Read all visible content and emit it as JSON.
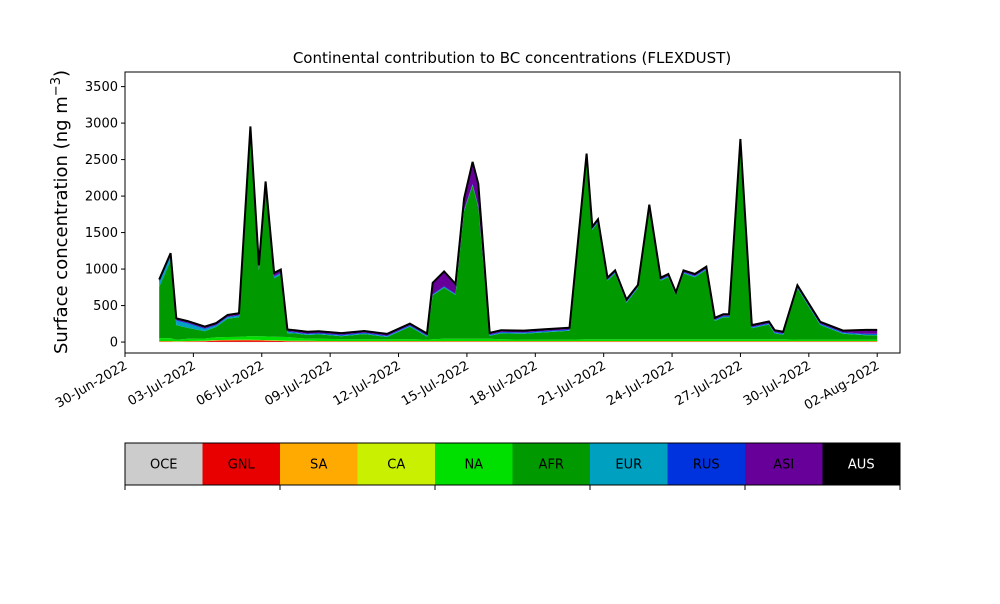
{
  "chart_data": {
    "type": "area",
    "stacked": true,
    "title": "Continental contribution to BC concentrations (FLEXDUST)",
    "ylabel": "Surface concentration (ng m",
    "ylabel_superscript": "−3",
    "ylabel_close": ")",
    "xlabel": "",
    "ylim": [
      -150,
      3700
    ],
    "yticks": [
      0,
      500,
      1000,
      1500,
      2000,
      2500,
      3000,
      3500
    ],
    "xlim": [
      "2022-06-30",
      "2022-08-03"
    ],
    "xticks": [
      "2022-06-30",
      "2022-07-03",
      "2022-07-06",
      "2022-07-09",
      "2022-07-12",
      "2022-07-15",
      "2022-07-18",
      "2022-07-21",
      "2022-07-24",
      "2022-07-27",
      "2022-07-30",
      "2022-08-02"
    ],
    "xticklabels": [
      "30-Jun-2022",
      "03-Jul-2022",
      "06-Jul-2022",
      "09-Jul-2022",
      "12-Jul-2022",
      "15-Jul-2022",
      "18-Jul-2022",
      "21-Jul-2022",
      "24-Jul-2022",
      "27-Jul-2022",
      "30-Jul-2022",
      "02-Aug-2022"
    ],
    "grid": false,
    "x": [
      "2022-07-01T12",
      "2022-07-02T00",
      "2022-07-02T06",
      "2022-07-02T18",
      "2022-07-03T12",
      "2022-07-04T00",
      "2022-07-04T12",
      "2022-07-05T00",
      "2022-07-05T12",
      "2022-07-05T21",
      "2022-07-06T04",
      "2022-07-06T13",
      "2022-07-06T20",
      "2022-07-07T03",
      "2022-07-07T12",
      "2022-07-08T00",
      "2022-07-08T12",
      "2022-07-09T12",
      "2022-07-10T12",
      "2022-07-11T12",
      "2022-07-12T12",
      "2022-07-13T06",
      "2022-07-13T12",
      "2022-07-14T00",
      "2022-07-14T12",
      "2022-07-14T21",
      "2022-07-15T06",
      "2022-07-15T12",
      "2022-07-16T00",
      "2022-07-16T12",
      "2022-07-17T12",
      "2022-07-18T12",
      "2022-07-19T12",
      "2022-07-20T06",
      "2022-07-20T12",
      "2022-07-20T18",
      "2022-07-21T04",
      "2022-07-21T12",
      "2022-07-22T00",
      "2022-07-22T12",
      "2022-07-23T00",
      "2022-07-23T12",
      "2022-07-23T20",
      "2022-07-24T04",
      "2022-07-24T12",
      "2022-07-25T00",
      "2022-07-25T12",
      "2022-07-25T21",
      "2022-07-26T06",
      "2022-07-26T12",
      "2022-07-27T00",
      "2022-07-27T12",
      "2022-07-28T06",
      "2022-07-28T12",
      "2022-07-28T21",
      "2022-07-29T12",
      "2022-07-30T12",
      "2022-07-31T12",
      "2022-08-01T12",
      "2022-08-02T00"
    ],
    "series": [
      {
        "name": "OCE",
        "color": "#cccccc",
        "values": [
          2,
          2,
          2,
          2,
          2,
          2,
          2,
          2,
          2,
          2,
          2,
          2,
          2,
          2,
          2,
          2,
          2,
          2,
          2,
          2,
          2,
          2,
          2,
          2,
          2,
          2,
          2,
          2,
          2,
          2,
          2,
          2,
          2,
          2,
          2,
          2,
          2,
          2,
          2,
          2,
          2,
          2,
          2,
          2,
          2,
          2,
          2,
          2,
          2,
          2,
          2,
          2,
          2,
          2,
          2,
          2,
          2,
          2,
          2,
          2
        ]
      },
      {
        "name": "GNL",
        "color": "#e80000",
        "values": [
          5,
          5,
          3,
          5,
          10,
          18,
          20,
          22,
          22,
          20,
          18,
          15,
          12,
          10,
          8,
          8,
          6,
          6,
          5,
          5,
          6,
          5,
          5,
          5,
          5,
          6,
          6,
          6,
          5,
          5,
          5,
          5,
          5,
          5,
          5,
          5,
          5,
          5,
          5,
          5,
          5,
          5,
          5,
          5,
          5,
          5,
          5,
          5,
          5,
          5,
          5,
          5,
          5,
          5,
          5,
          5,
          5,
          5,
          5,
          5
        ]
      },
      {
        "name": "SA",
        "color": "#ffaa00",
        "values": [
          2,
          2,
          2,
          2,
          2,
          2,
          2,
          2,
          2,
          2,
          2,
          2,
          2,
          2,
          2,
          2,
          2,
          2,
          2,
          2,
          2,
          2,
          2,
          2,
          2,
          2,
          2,
          2,
          2,
          2,
          2,
          2,
          2,
          2,
          2,
          2,
          2,
          2,
          2,
          2,
          2,
          2,
          2,
          2,
          2,
          2,
          2,
          2,
          2,
          2,
          2,
          2,
          2,
          2,
          2,
          2,
          2,
          2,
          2,
          2
        ]
      },
      {
        "name": "CA",
        "color": "#c8f000",
        "values": [
          5,
          5,
          5,
          5,
          5,
          5,
          5,
          5,
          5,
          5,
          5,
          5,
          5,
          5,
          5,
          5,
          5,
          5,
          5,
          5,
          5,
          5,
          5,
          5,
          5,
          5,
          5,
          5,
          5,
          5,
          5,
          5,
          5,
          5,
          5,
          5,
          5,
          5,
          5,
          5,
          5,
          5,
          5,
          5,
          5,
          5,
          5,
          5,
          5,
          5,
          5,
          5,
          5,
          5,
          5,
          5,
          5,
          5,
          5,
          5
        ]
      },
      {
        "name": "NA",
        "color": "#00e000",
        "values": [
          40,
          40,
          20,
          30,
          30,
          40,
          40,
          40,
          50,
          50,
          50,
          50,
          50,
          50,
          40,
          30,
          30,
          25,
          25,
          25,
          25,
          20,
          25,
          30,
          30,
          30,
          30,
          30,
          30,
          25,
          20,
          20,
          20,
          25,
          25,
          25,
          25,
          25,
          25,
          25,
          25,
          25,
          25,
          25,
          25,
          25,
          25,
          25,
          25,
          25,
          25,
          25,
          25,
          25,
          25,
          20,
          20,
          20,
          20,
          20
        ]
      },
      {
        "name": "AFR",
        "color": "#009900",
        "values": [
          700,
          1060,
          200,
          150,
          100,
          140,
          250,
          270,
          2800,
          900,
          2050,
          800,
          850,
          50,
          60,
          50,
          60,
          40,
          70,
          30,
          170,
          40,
          600,
          700,
          600,
          1750,
          2100,
          1800,
          40,
          80,
          80,
          100,
          120,
          2500,
          1500,
          1600,
          800,
          900,
          500,
          700,
          1800,
          800,
          850,
          600,
          900,
          850,
          950,
          250,
          300,
          300,
          2700,
          150,
          200,
          80,
          60,
          700,
          200,
          80,
          60,
          60
        ]
      },
      {
        "name": "EUR",
        "color": "#00a0c0",
        "values": [
          60,
          60,
          60,
          60,
          30,
          20,
          20,
          20,
          20,
          20,
          20,
          20,
          20,
          20,
          10,
          10,
          10,
          10,
          10,
          10,
          10,
          10,
          10,
          10,
          10,
          10,
          10,
          10,
          10,
          10,
          10,
          10,
          10,
          10,
          10,
          10,
          10,
          10,
          10,
          10,
          10,
          10,
          10,
          10,
          10,
          10,
          10,
          10,
          10,
          10,
          10,
          10,
          10,
          10,
          10,
          10,
          10,
          10,
          10,
          10
        ]
      },
      {
        "name": "RUS",
        "color": "#0033dd",
        "values": [
          20,
          20,
          10,
          10,
          10,
          10,
          10,
          10,
          10,
          10,
          10,
          10,
          10,
          10,
          10,
          10,
          10,
          10,
          10,
          10,
          10,
          10,
          10,
          10,
          10,
          10,
          10,
          10,
          10,
          10,
          10,
          10,
          10,
          10,
          10,
          10,
          10,
          10,
          10,
          10,
          10,
          10,
          10,
          10,
          10,
          10,
          10,
          10,
          10,
          10,
          10,
          10,
          10,
          10,
          10,
          10,
          10,
          10,
          10,
          10
        ]
      },
      {
        "name": "ASI",
        "color": "#660099",
        "values": [
          20,
          20,
          20,
          20,
          20,
          20,
          20,
          20,
          40,
          40,
          40,
          40,
          40,
          20,
          20,
          20,
          20,
          20,
          20,
          20,
          20,
          20,
          150,
          200,
          130,
          150,
          300,
          300,
          20,
          20,
          20,
          20,
          20,
          20,
          20,
          20,
          20,
          20,
          20,
          20,
          20,
          20,
          20,
          20,
          20,
          20,
          20,
          20,
          20,
          20,
          20,
          20,
          20,
          20,
          20,
          20,
          20,
          20,
          50,
          50
        ]
      },
      {
        "name": "AUS",
        "color": "#000000",
        "values": [
          3,
          3,
          3,
          3,
          3,
          3,
          3,
          3,
          3,
          3,
          3,
          3,
          3,
          3,
          3,
          3,
          3,
          3,
          3,
          3,
          3,
          3,
          3,
          3,
          3,
          3,
          3,
          3,
          3,
          3,
          3,
          3,
          3,
          3,
          3,
          3,
          3,
          3,
          3,
          3,
          3,
          3,
          3,
          3,
          3,
          3,
          3,
          3,
          3,
          3,
          3,
          3,
          3,
          3,
          3,
          3,
          3,
          3,
          3,
          3
        ]
      }
    ],
    "colorbar_labels": [
      "OCE",
      "GNL",
      "SA",
      "CA",
      "NA",
      "AFR",
      "EUR",
      "RUS",
      "ASI",
      "AUS"
    ],
    "colorbar_colors": [
      "#cccccc",
      "#e80000",
      "#ffaa00",
      "#c8f000",
      "#00e000",
      "#009900",
      "#00a0c0",
      "#0033dd",
      "#660099",
      "#000000"
    ],
    "colorbar_label_colors": [
      "#000000",
      "#000000",
      "#000000",
      "#000000",
      "#000000",
      "#000000",
      "#000000",
      "#000000",
      "#000000",
      "#ffffff"
    ]
  }
}
